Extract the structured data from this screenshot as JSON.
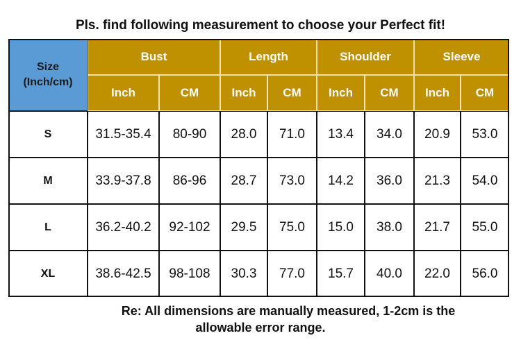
{
  "title": "Pls. find following measurement to choose your Perfect fit!",
  "table": {
    "size_header": {
      "line1": "Size",
      "line2": "(Inch/cm)"
    },
    "groups": [
      "Bust",
      "Length",
      "Shoulder",
      "Sleeve"
    ],
    "units": [
      "Inch",
      "CM",
      "Inch",
      "CM",
      "Inch",
      "CM",
      "Inch",
      "CM"
    ],
    "rows": [
      [
        "S",
        "31.5-35.4",
        "80-90",
        "28.0",
        "71.0",
        "13.4",
        "34.0",
        "20.9",
        "53.0"
      ],
      [
        "M",
        "33.9-37.8",
        "86-96",
        "28.7",
        "73.0",
        "14.2",
        "36.0",
        "21.3",
        "54.0"
      ],
      [
        "L",
        "36.2-40.2",
        "92-102",
        "29.5",
        "75.0",
        "15.0",
        "38.0",
        "21.7",
        "55.0"
      ],
      [
        "XL",
        "38.6-42.5",
        "98-108",
        "30.3",
        "77.0",
        "15.7",
        "40.0",
        "22.0",
        "56.0"
      ]
    ]
  },
  "note": {
    "line1": "Re: All dimensions are manually measured, 1-2cm is the",
    "line2": "allowable error range."
  }
}
